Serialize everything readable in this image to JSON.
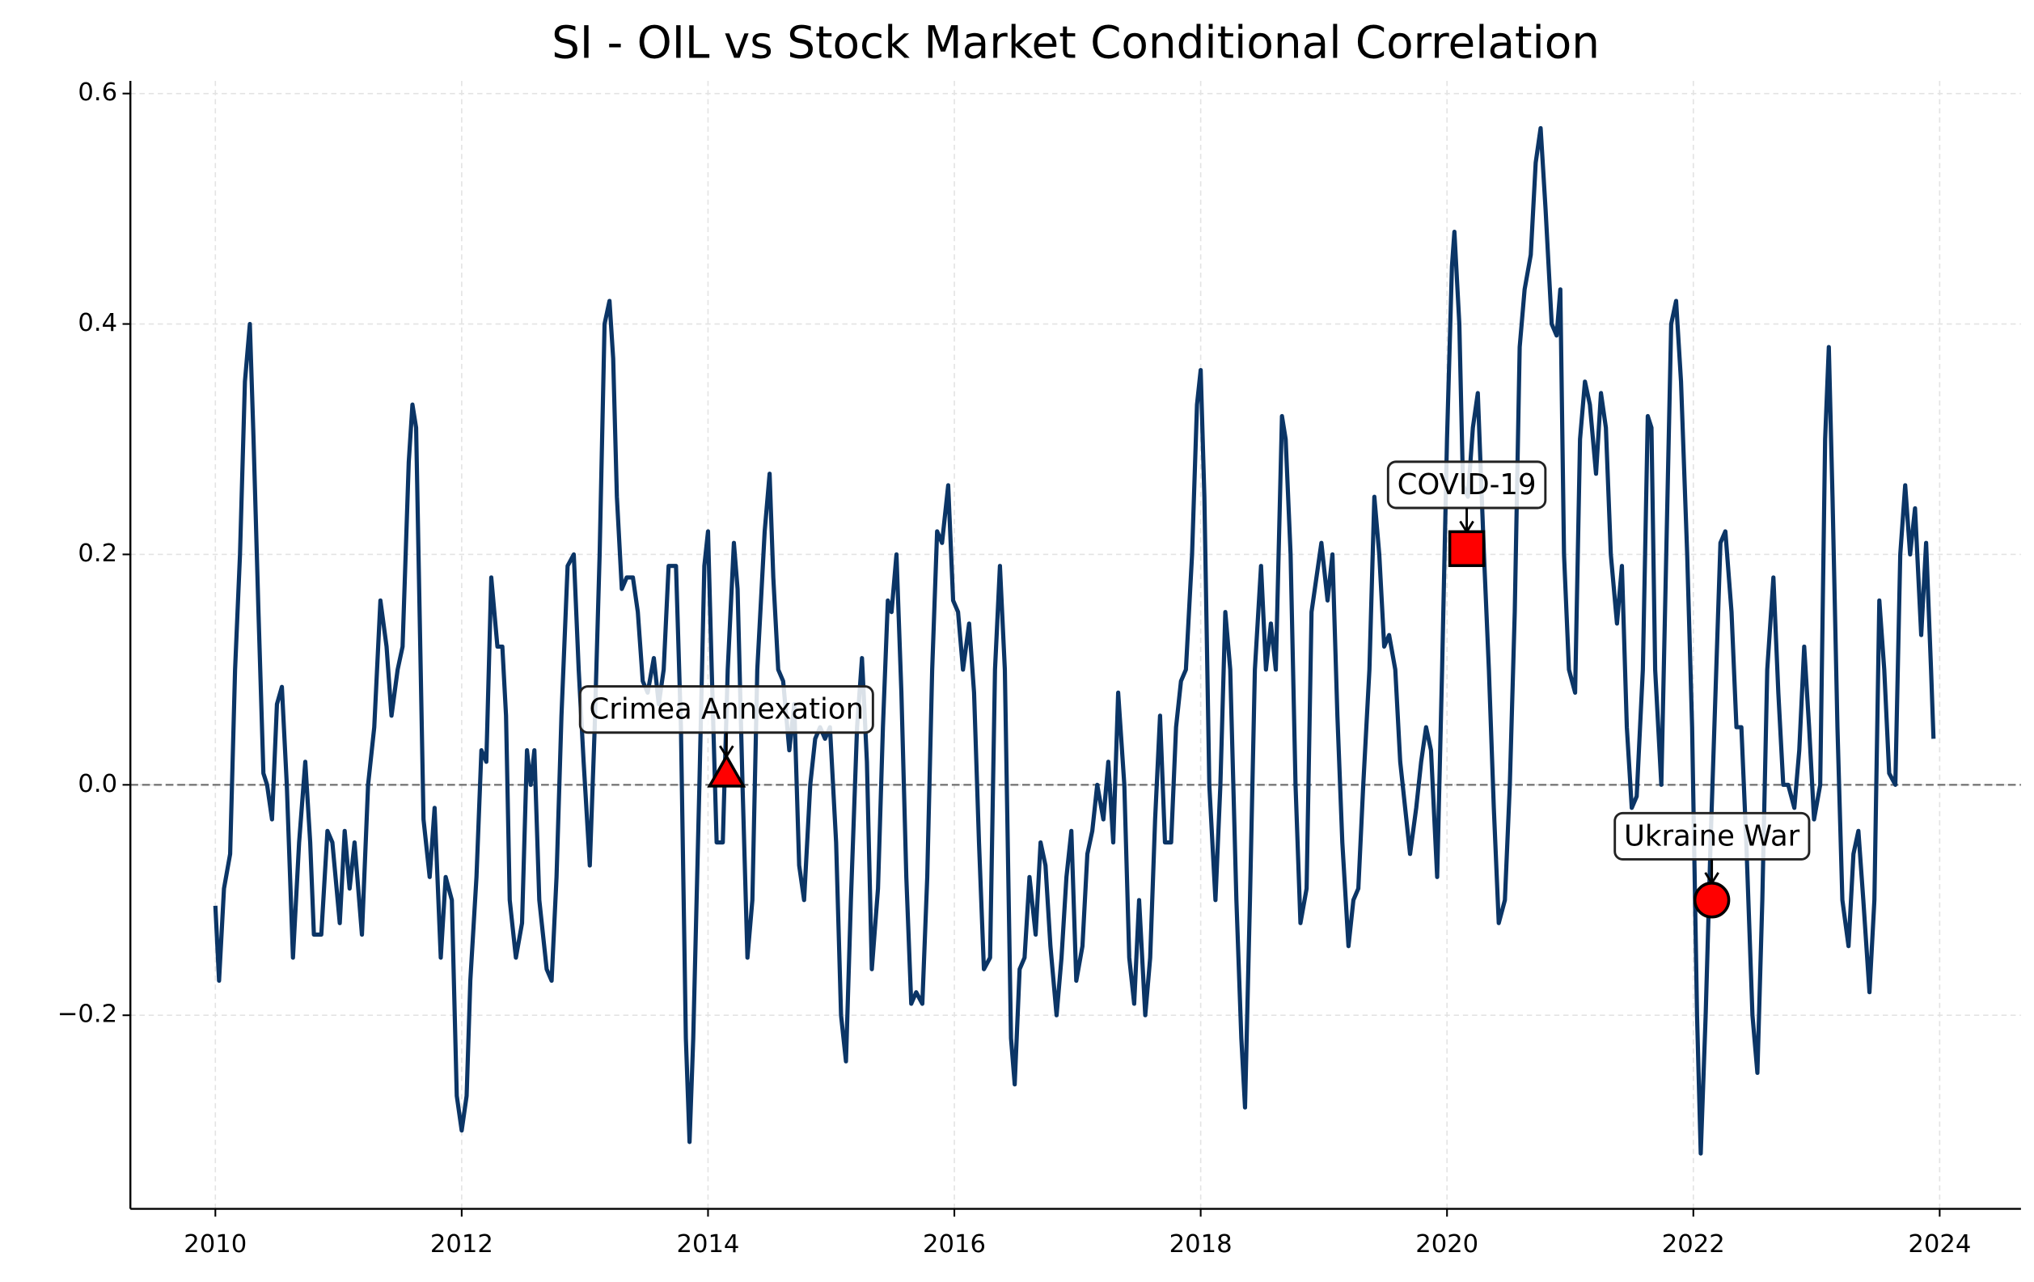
{
  "chart_data": {
    "type": "line",
    "title": "SI - OIL vs Stock Market Conditional Correlation",
    "color": "#0b3566",
    "grid": true,
    "zero_line": true,
    "xlim": [
      2009.31,
      2024.66
    ],
    "ylim": [
      -0.368,
      0.611
    ],
    "xticks": [
      2010,
      2012,
      2014,
      2016,
      2018,
      2020,
      2022,
      2024
    ],
    "yticks": [
      {
        "value": -0.2,
        "label": "−0.2"
      },
      {
        "value": 0,
        "label": "0.0"
      },
      {
        "value": 0.2,
        "label": "0.2"
      },
      {
        "value": 0.4,
        "label": "0.4"
      },
      {
        "value": 0.6,
        "label": "0.6"
      }
    ],
    "x": [
      2010.0,
      2010.03,
      2010.07,
      2010.12,
      2010.16,
      2010.2,
      2010.24,
      2010.28,
      2010.31,
      2010.35,
      2010.39,
      2010.42,
      2010.46,
      2010.5,
      2010.54,
      2010.58,
      2010.63,
      2010.68,
      2010.73,
      2010.77,
      2010.8,
      2010.86,
      2010.91,
      2010.95,
      2011.01,
      2011.05,
      2011.09,
      2011.13,
      2011.19,
      2011.24,
      2011.29,
      2011.34,
      2011.39,
      2011.43,
      2011.48,
      2011.52,
      2011.57,
      2011.6,
      2011.63,
      2011.66,
      2011.69,
      2011.74,
      2011.78,
      2011.83,
      2011.87,
      2011.92,
      2011.96,
      2012.0,
      2012.04,
      2012.07,
      2012.12,
      2012.16,
      2012.2,
      2012.24,
      2012.29,
      2012.33,
      2012.36,
      2012.39,
      2012.44,
      2012.49,
      2012.53,
      2012.56,
      2012.59,
      2012.63,
      2012.69,
      2012.73,
      2012.77,
      2012.81,
      2012.86,
      2012.91,
      2012.95,
      2012.99,
      2013.04,
      2013.08,
      2013.12,
      2013.16,
      2013.2,
      2013.23,
      2013.26,
      2013.3,
      2013.34,
      2013.39,
      2013.43,
      2013.47,
      2013.51,
      2013.56,
      2013.6,
      2013.64,
      2013.68,
      2013.74,
      2013.78,
      2013.82,
      2013.85,
      2013.88,
      2013.93,
      2013.97,
      2014.0,
      2014.03,
      2014.07,
      2014.12,
      2014.16,
      2014.21,
      2014.24,
      2014.28,
      2014.32,
      2014.36,
      2014.4,
      2014.46,
      2014.5,
      2014.53,
      2014.57,
      2014.61,
      2014.66,
      2014.7,
      2014.74,
      2014.78,
      2014.83,
      2014.87,
      2014.91,
      2014.95,
      2014.99,
      2015.04,
      2015.08,
      2015.12,
      2015.16,
      2015.21,
      2015.25,
      2015.29,
      2015.33,
      2015.38,
      2015.42,
      2015.46,
      2015.49,
      2015.53,
      2015.57,
      2015.61,
      2015.65,
      2015.69,
      2015.74,
      2015.78,
      2015.82,
      2015.86,
      2015.9,
      2015.95,
      2015.99,
      2016.03,
      2016.07,
      2016.12,
      2016.16,
      2016.2,
      2016.24,
      2016.29,
      2016.33,
      2016.37,
      2016.41,
      2016.46,
      2016.49,
      2016.53,
      2016.57,
      2016.61,
      2016.66,
      2016.7,
      2016.74,
      2016.78,
      2016.83,
      2016.87,
      2016.91,
      2016.95,
      2016.99,
      2017.04,
      2017.08,
      2017.12,
      2017.16,
      2017.21,
      2017.25,
      2017.29,
      2017.33,
      2017.38,
      2017.42,
      2017.46,
      2017.5,
      2017.55,
      2017.59,
      2017.63,
      2017.67,
      2017.71,
      2017.76,
      2017.8,
      2017.84,
      2017.88,
      2017.93,
      2017.97,
      2018.0,
      2018.03,
      2018.07,
      2018.12,
      2018.16,
      2018.2,
      2018.24,
      2018.29,
      2018.33,
      2018.36,
      2018.4,
      2018.44,
      2018.49,
      2018.53,
      2018.57,
      2018.61,
      2018.66,
      2018.69,
      2018.73,
      2018.77,
      2018.81,
      2018.86,
      2018.9,
      2018.94,
      2018.98,
      2019.03,
      2019.07,
      2019.11,
      2019.15,
      2019.2,
      2019.24,
      2019.28,
      2019.32,
      2019.37,
      2019.41,
      2019.45,
      2019.49,
      2019.53,
      2019.58,
      2019.62,
      2019.66,
      2019.7,
      2019.75,
      2019.79,
      2019.83,
      2019.87,
      2019.92,
      2019.96,
      2020.0,
      2020.04,
      2020.06,
      2020.1,
      2020.13,
      2020.17,
      2020.21,
      2020.25,
      2020.3,
      2020.34,
      2020.38,
      2020.42,
      2020.47,
      2020.51,
      2020.55,
      2020.59,
      2020.63,
      2020.68,
      2020.72,
      2020.76,
      2020.8,
      2020.85,
      2020.89,
      2020.92,
      2020.95,
      2020.99,
      2021.04,
      2021.08,
      2021.12,
      2021.16,
      2021.21,
      2021.25,
      2021.29,
      2021.33,
      2021.38,
      2021.42,
      2021.46,
      2021.5,
      2021.54,
      2021.59,
      2021.63,
      2021.66,
      2021.69,
      2021.74,
      2021.78,
      2021.82,
      2021.86,
      2021.9,
      2021.95,
      2021.99,
      2022.03,
      2022.06,
      2022.1,
      2022.14,
      2022.18,
      2022.22,
      2022.26,
      2022.31,
      2022.35,
      2022.39,
      2022.43,
      2022.48,
      2022.52,
      2022.56,
      2022.6,
      2022.65,
      2022.69,
      2022.73,
      2022.77,
      2022.82,
      2022.86,
      2022.9,
      2022.94,
      2022.98,
      2023.03,
      2023.07,
      2023.1,
      2023.13,
      2023.17,
      2023.21,
      2023.26,
      2023.3,
      2023.34,
      2023.38,
      2023.43,
      2023.47,
      2023.51,
      2023.55,
      2023.59,
      2023.64,
      2023.68,
      2023.72,
      2023.76,
      2023.8,
      2023.85,
      2023.89,
      2023.93,
      2023.95
    ],
    "values": [
      -0.105,
      -0.17,
      -0.09,
      -0.06,
      0.1,
      0.2,
      0.35,
      0.4,
      0.3,
      0.15,
      0.01,
      0.0,
      -0.03,
      0.07,
      0.085,
      0.0,
      -0.15,
      -0.05,
      0.02,
      -0.05,
      -0.13,
      -0.13,
      -0.04,
      -0.05,
      -0.12,
      -0.04,
      -0.09,
      -0.05,
      -0.13,
      0.0,
      0.05,
      0.16,
      0.12,
      0.06,
      0.1,
      0.12,
      0.28,
      0.33,
      0.31,
      0.14,
      -0.03,
      -0.08,
      -0.02,
      -0.15,
      -0.08,
      -0.1,
      -0.27,
      -0.3,
      -0.27,
      -0.17,
      -0.08,
      0.03,
      0.02,
      0.18,
      0.12,
      0.12,
      0.06,
      -0.1,
      -0.15,
      -0.12,
      0.03,
      0.0,
      0.03,
      -0.1,
      -0.16,
      -0.17,
      -0.08,
      0.06,
      0.19,
      0.2,
      0.1,
      0.02,
      -0.07,
      0.05,
      0.2,
      0.4,
      0.42,
      0.37,
      0.25,
      0.17,
      0.18,
      0.18,
      0.15,
      0.09,
      0.08,
      0.11,
      0.07,
      0.1,
      0.19,
      0.19,
      0.05,
      -0.22,
      -0.31,
      -0.22,
      0.0,
      0.19,
      0.22,
      0.1,
      -0.05,
      -0.05,
      0.1,
      0.21,
      0.17,
      0.0,
      -0.15,
      -0.1,
      0.1,
      0.22,
      0.27,
      0.18,
      0.1,
      0.09,
      0.03,
      0.07,
      -0.07,
      -0.1,
      0.0,
      0.04,
      0.05,
      0.04,
      0.05,
      -0.05,
      -0.2,
      -0.24,
      -0.1,
      0.05,
      0.11,
      0.02,
      -0.16,
      -0.09,
      0.05,
      0.16,
      0.15,
      0.2,
      0.08,
      -0.08,
      -0.19,
      -0.18,
      -0.19,
      -0.08,
      0.1,
      0.22,
      0.21,
      0.26,
      0.16,
      0.15,
      0.1,
      0.14,
      0.08,
      -0.05,
      -0.16,
      -0.15,
      0.1,
      0.19,
      0.1,
      -0.22,
      -0.26,
      -0.16,
      -0.15,
      -0.08,
      -0.13,
      -0.05,
      -0.07,
      -0.14,
      -0.2,
      -0.15,
      -0.08,
      -0.04,
      -0.17,
      -0.14,
      -0.06,
      -0.04,
      0.0,
      -0.03,
      0.02,
      -0.05,
      0.08,
      0.0,
      -0.15,
      -0.19,
      -0.1,
      -0.2,
      -0.15,
      -0.03,
      0.06,
      -0.05,
      -0.05,
      0.05,
      0.09,
      0.1,
      0.2,
      0.33,
      0.36,
      0.25,
      0.0,
      -0.1,
      0.0,
      0.15,
      0.1,
      -0.1,
      -0.22,
      -0.28,
      -0.1,
      0.1,
      0.19,
      0.1,
      0.14,
      0.1,
      0.32,
      0.3,
      0.2,
      0.0,
      -0.12,
      -0.09,
      0.15,
      0.18,
      0.21,
      0.16,
      0.2,
      0.06,
      -0.05,
      -0.14,
      -0.1,
      -0.09,
      0.0,
      0.1,
      0.25,
      0.2,
      0.12,
      0.13,
      0.1,
      0.02,
      -0.02,
      -0.06,
      -0.02,
      0.02,
      0.05,
      0.03,
      -0.08,
      0.1,
      0.3,
      0.45,
      0.48,
      0.4,
      0.26,
      0.25,
      0.31,
      0.34,
      0.2,
      0.1,
      -0.02,
      -0.12,
      -0.1,
      0.0,
      0.15,
      0.38,
      0.43,
      0.46,
      0.54,
      0.57,
      0.5,
      0.4,
      0.39,
      0.43,
      0.2,
      0.1,
      0.08,
      0.3,
      0.35,
      0.33,
      0.27,
      0.34,
      0.31,
      0.2,
      0.14,
      0.19,
      0.05,
      -0.02,
      -0.01,
      0.1,
      0.32,
      0.31,
      0.1,
      0.0,
      0.2,
      0.4,
      0.42,
      0.35,
      0.2,
      0.05,
      -0.2,
      -0.32,
      -0.2,
      -0.05,
      0.08,
      0.21,
      0.22,
      0.15,
      0.05,
      0.05,
      -0.05,
      -0.2,
      -0.25,
      -0.1,
      0.1,
      0.18,
      0.08,
      0.0,
      0.0,
      -0.02,
      0.03,
      0.12,
      0.05,
      -0.03,
      0.0,
      0.3,
      0.38,
      0.25,
      0.05,
      -0.1,
      -0.14,
      -0.06,
      -0.04,
      -0.1,
      -0.18,
      -0.1,
      0.16,
      0.1,
      0.01,
      0.0,
      0.2,
      0.26,
      0.2,
      0.24,
      0.13,
      0.21,
      0.1,
      0.04
    ],
    "events": [
      {
        "label": "Crimea Annexation",
        "x": 2014.15,
        "y": 0.01,
        "marker": "triangle",
        "color": "#ff0000"
      },
      {
        "label": "COVID-19",
        "x": 2020.16,
        "y": 0.205,
        "marker": "square",
        "color": "#ff0000"
      },
      {
        "label": "Ukraine War",
        "x": 2022.15,
        "y": -0.1,
        "marker": "circle",
        "color": "#ff0000"
      }
    ]
  }
}
